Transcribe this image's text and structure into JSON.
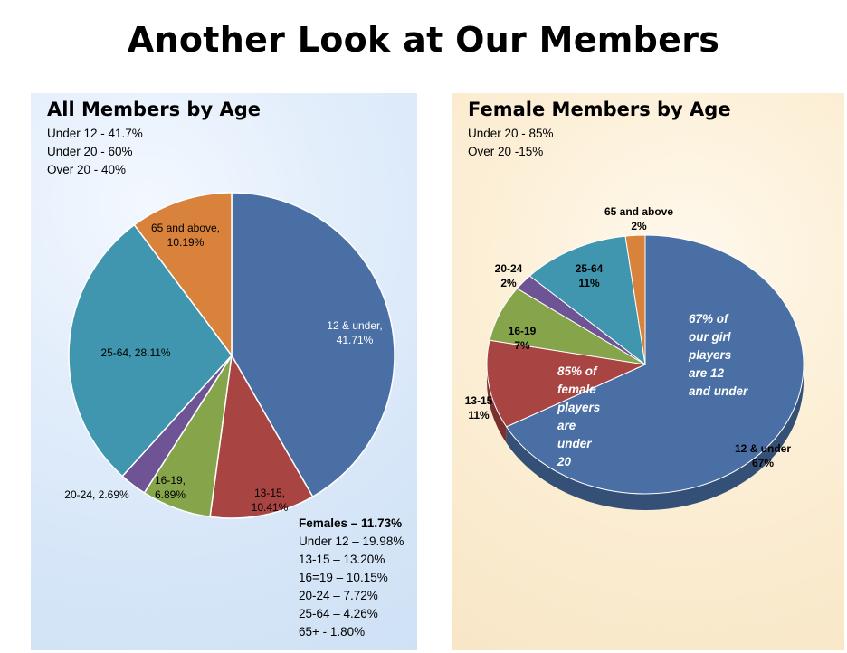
{
  "page": {
    "title": "Another Look at Our Members"
  },
  "left_panel": {
    "title": "All Members by Age",
    "notes": [
      "Under 12 - 41.7%",
      "Under 20 - 60%",
      "Over 20  - 40%"
    ],
    "females_heading": "Females – 11.73%",
    "females_items": [
      "Under 12 – 19.98%",
      "13-15 – 13.20%",
      "16=19 – 10.15%",
      "20-24 – 7.72%",
      "25-64 – 4.26%",
      "65+ - 1.80%"
    ]
  },
  "right_panel": {
    "title": "Female Members by Age",
    "notes": [
      "Under 20 - 85%",
      "Over 20 -15%"
    ],
    "annotations": {
      "girls_12": [
        "67% of",
        "our girl",
        "players",
        "are 12",
        "and under"
      ],
      "female_85": [
        "85% of",
        "female",
        "players",
        "are",
        "under",
        "20"
      ]
    }
  },
  "chart_data": [
    {
      "type": "pie",
      "title": "All Members by Age",
      "slices": [
        {
          "label": "12 & under",
          "value": 41.71,
          "text": "12 & under, 41.71%",
          "color": "#4A6FA5"
        },
        {
          "label": "13-15",
          "value": 10.41,
          "text": "13-15, 10.41%",
          "color": "#A84442"
        },
        {
          "label": "16-19",
          "value": 6.89,
          "text": "16-19, 6.89%",
          "color": "#86A44A"
        },
        {
          "label": "20-24",
          "value": 2.69,
          "text": "20-24, 2.69%",
          "color": "#6E5494"
        },
        {
          "label": "25-64",
          "value": 28.11,
          "text": "25-64, 28.11%",
          "color": "#3F96AE"
        },
        {
          "label": "65 and above",
          "value": 10.19,
          "text": "65 and above, 10.19%",
          "color": "#D9823B"
        }
      ]
    },
    {
      "type": "pie",
      "title": "Female Members by Age",
      "slices": [
        {
          "label": "12 & under",
          "value": 67,
          "pct": "67%",
          "color": "#4A6FA5"
        },
        {
          "label": "13-15",
          "value": 11,
          "pct": "11%",
          "color": "#A84442"
        },
        {
          "label": "16-19",
          "value": 7,
          "pct": "7%",
          "color": "#86A44A"
        },
        {
          "label": "20-24",
          "value": 2,
          "pct": "2%",
          "color": "#6E5494"
        },
        {
          "label": "25-64",
          "value": 11,
          "pct": "11%",
          "color": "#3F96AE"
        },
        {
          "label": "65 and above",
          "value": 2,
          "pct": "2%",
          "color": "#D9823B"
        }
      ]
    }
  ]
}
